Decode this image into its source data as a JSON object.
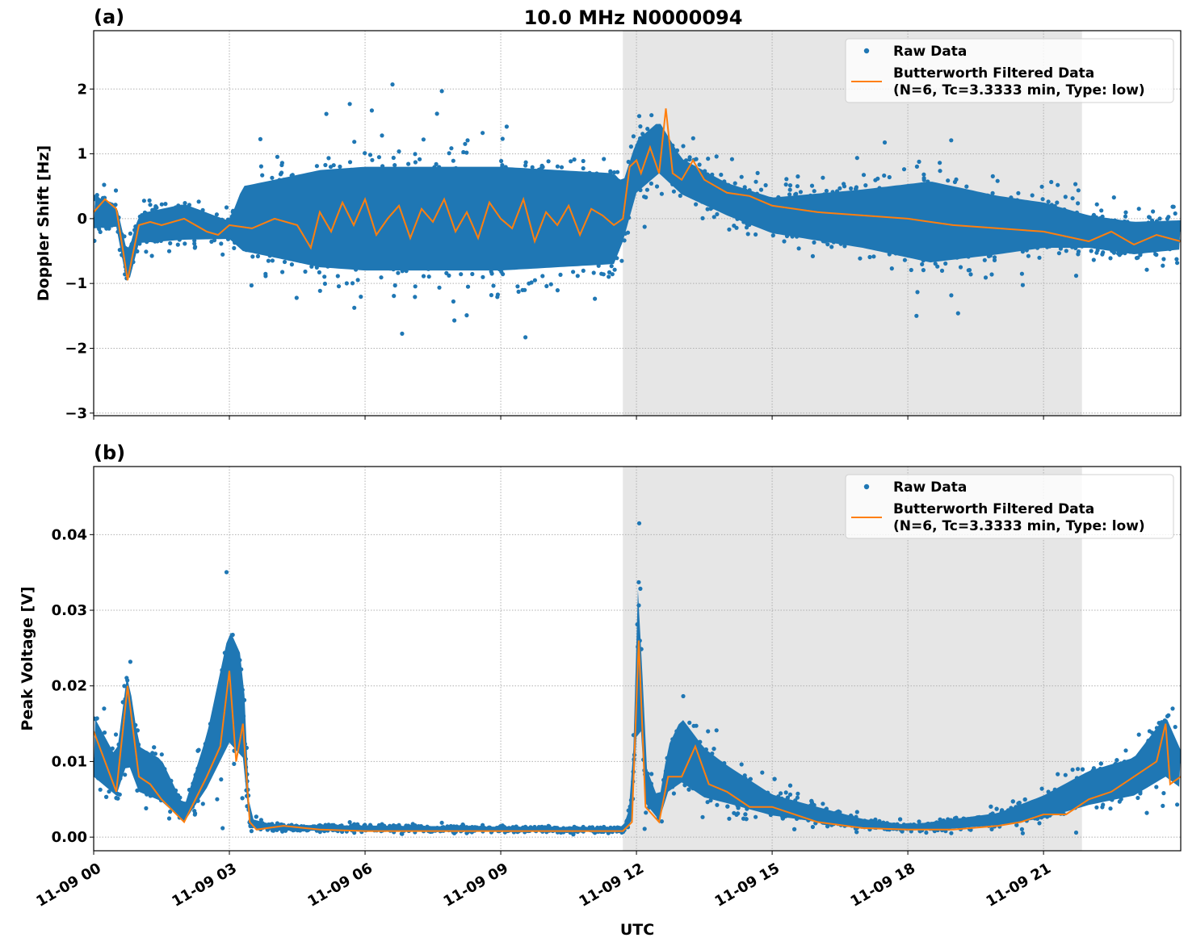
{
  "title": "10.0 MHz N0000094",
  "xlabel": "UTC",
  "chart_data": [
    {
      "type": "scatter+line",
      "panel_label": "(a)",
      "ylabel": "Doppler Shift [Hz]",
      "xlim": [
        "11-09 00:00",
        "11-10 00:02"
      ],
      "ylim": [
        -3.04,
        2.9
      ],
      "grid": true,
      "legend_position": "top-right",
      "x_ticks": [
        "11-09 00",
        "11-09 03",
        "11-09 06",
        "11-09 09",
        "11-09 12",
        "11-09 15",
        "11-09 18",
        "11-09 21"
      ],
      "y_ticks": [
        -3,
        -2,
        -1,
        0,
        1,
        2
      ],
      "y_tick_labels": [
        "−3",
        "−2",
        "−1",
        "0",
        "1",
        "2"
      ],
      "shaded_interval": [
        "11-09 11:42",
        "11-09 21:51"
      ],
      "series": [
        {
          "name": "Raw Data",
          "style": "dots",
          "color": "#1f77b4",
          "range": {
            "x": [
              "11-09 00:00",
              "11-09 00:30",
              "11-09 00:45",
              "11-09 01:00",
              "11-09 02:00",
              "11-09 03:00",
              "11-09 03:18",
              "11-09 04:00",
              "11-09 05:00",
              "11-09 06:00",
              "11-09 09:00",
              "11-09 11:30",
              "11-09 11:42",
              "11-09 12:00",
              "11-09 12:30",
              "11-09 13:00",
              "11-09 14:00",
              "11-09 15:00",
              "11-09 17:00",
              "11-09 18:30",
              "11-09 20:00",
              "11-09 21:00",
              "11-09 22:00",
              "11-09 23:00",
              "11-10 00:02"
            ],
            "low": [
              -0.4,
              -0.3,
              -1.3,
              -0.6,
              -0.6,
              -0.45,
              -1.0,
              -1.2,
              -1.5,
              -1.6,
              -1.6,
              -1.4,
              -0.8,
              0.0,
              0.3,
              0.1,
              -0.2,
              -0.5,
              -0.9,
              -1.3,
              -1.0,
              -0.8,
              -0.7,
              -0.8,
              -0.7
            ],
            "high": [
              0.6,
              0.4,
              -0.3,
              0.3,
              0.5,
              0.1,
              1.0,
              1.2,
              1.5,
              1.6,
              1.6,
              1.4,
              1.0,
              1.6,
              1.9,
              1.2,
              0.8,
              0.6,
              0.9,
              1.2,
              0.8,
              0.6,
              0.3,
              0.2,
              0.2
            ]
          }
        },
        {
          "name": "Butterworth Filtered Data\n(N=6, Tc=3.3333 min, Type: low)",
          "style": "line",
          "color": "#ff7f0e",
          "x": [
            "11-09 00:00",
            "11-09 00:15",
            "11-09 00:30",
            "11-09 00:39",
            "11-09 00:45",
            "11-09 00:51",
            "11-09 01:00",
            "11-09 01:15",
            "11-09 01:30",
            "11-09 02:00",
            "11-09 02:30",
            "11-09 02:45",
            "11-09 03:00",
            "11-09 03:30",
            "11-09 04:00",
            "11-09 04:30",
            "11-09 04:48",
            "11-09 05:00",
            "11-09 05:15",
            "11-09 05:30",
            "11-09 05:45",
            "11-09 06:00",
            "11-09 06:15",
            "11-09 06:30",
            "11-09 06:45",
            "11-09 07:00",
            "11-09 07:15",
            "11-09 07:30",
            "11-09 07:45",
            "11-09 08:00",
            "11-09 08:15",
            "11-09 08:30",
            "11-09 08:45",
            "11-09 09:00",
            "11-09 09:15",
            "11-09 09:30",
            "11-09 09:45",
            "11-09 10:00",
            "11-09 10:15",
            "11-09 10:30",
            "11-09 10:45",
            "11-09 11:00",
            "11-09 11:15",
            "11-09 11:30",
            "11-09 11:42",
            "11-09 11:51",
            "11-09 12:00",
            "11-09 12:06",
            "11-09 12:18",
            "11-09 12:30",
            "11-09 12:39",
            "11-09 12:48",
            "11-09 13:00",
            "11-09 13:15",
            "11-09 13:30",
            "11-09 14:00",
            "11-09 14:30",
            "11-09 15:00",
            "11-09 16:00",
            "11-09 17:00",
            "11-09 18:00",
            "11-09 19:00",
            "11-09 20:00",
            "11-09 21:00",
            "11-09 22:00",
            "11-09 22:30",
            "11-09 23:00",
            "11-09 23:30",
            "11-10 00:02"
          ],
          "y": [
            0.1,
            0.3,
            0.15,
            -0.5,
            -0.95,
            -0.6,
            -0.1,
            -0.05,
            -0.1,
            0.0,
            -0.2,
            -0.25,
            -0.1,
            -0.15,
            0.0,
            -0.1,
            -0.45,
            0.1,
            -0.2,
            0.25,
            -0.1,
            0.3,
            -0.25,
            0.0,
            0.2,
            -0.3,
            0.15,
            -0.05,
            0.3,
            -0.2,
            0.1,
            -0.3,
            0.25,
            0.0,
            -0.15,
            0.3,
            -0.35,
            0.1,
            -0.1,
            0.2,
            -0.25,
            0.15,
            0.05,
            -0.1,
            0.0,
            0.8,
            0.9,
            0.7,
            1.1,
            0.7,
            1.7,
            0.7,
            0.6,
            0.9,
            0.6,
            0.4,
            0.35,
            0.2,
            0.1,
            0.05,
            0.0,
            -0.1,
            -0.15,
            -0.2,
            -0.35,
            -0.2,
            -0.4,
            -0.25,
            -0.35
          ]
        }
      ]
    },
    {
      "type": "scatter+line",
      "panel_label": "(b)",
      "ylabel": "Peak Voltage [V]",
      "xlim": [
        "11-09 00:00",
        "11-10 00:02"
      ],
      "ylim": [
        -0.0018,
        0.049
      ],
      "grid": true,
      "legend_position": "top-right",
      "x_ticks": [
        "11-09 00",
        "11-09 03",
        "11-09 06",
        "11-09 09",
        "11-09 12",
        "11-09 15",
        "11-09 18",
        "11-09 21"
      ],
      "y_ticks": [
        0,
        0.01,
        0.02,
        0.03,
        0.04
      ],
      "y_tick_labels": [
        "0.00",
        "0.01",
        "0.02",
        "0.03",
        "0.04"
      ],
      "shaded_interval": [
        "11-09 11:42",
        "11-09 21:51"
      ],
      "series": [
        {
          "name": "Raw Data",
          "style": "dots",
          "color": "#1f77b4",
          "range": {
            "x": [
              "11-09 00:00",
              "11-09 00:30",
              "11-09 00:45",
              "11-09 01:00",
              "11-09 01:30",
              "11-09 02:00",
              "11-09 02:30",
              "11-09 03:00",
              "11-09 03:18",
              "11-09 03:27",
              "11-09 04:00",
              "11-09 11:42",
              "11-09 11:54",
              "11-09 12:03",
              "11-09 12:12",
              "11-09 12:30",
              "11-09 12:42",
              "11-09 13:00",
              "11-09 13:30",
              "11-09 14:00",
              "11-09 15:00",
              "11-09 16:00",
              "11-09 17:00",
              "11-09 18:00",
              "11-09 19:00",
              "11-09 20:00",
              "11-09 21:00",
              "11-09 22:00",
              "11-09 23:00",
              "11-09 23:42",
              "11-10 00:02"
            ],
            "low": [
              0.004,
              0.003,
              0.004,
              0.003,
              0.002,
              0.001,
              0.003,
              0.005,
              0.004,
              0.0008,
              0.0005,
              0.0005,
              0.001,
              0.01,
              0.002,
              0.001,
              0.003,
              0.003,
              0.002,
              0.002,
              0.0015,
              0.001,
              0.0006,
              0.0005,
              0.0005,
              0.0008,
              0.001,
              0.002,
              0.003,
              0.004,
              0.004
            ],
            "high": [
              0.02,
              0.013,
              0.028,
              0.015,
              0.013,
              0.005,
              0.017,
              0.035,
              0.03,
              0.003,
              0.002,
              0.0015,
              0.006,
              0.045,
              0.012,
              0.006,
              0.015,
              0.02,
              0.015,
              0.012,
              0.007,
              0.005,
              0.003,
              0.002,
              0.003,
              0.004,
              0.007,
              0.011,
              0.013,
              0.02,
              0.014
            ]
          }
        },
        {
          "name": "Butterworth Filtered Data\n(N=6, Tc=3.3333 min, Type: low)",
          "style": "line",
          "color": "#ff7f0e",
          "x": [
            "11-09 00:00",
            "11-09 00:15",
            "11-09 00:30",
            "11-09 00:45",
            "11-09 01:00",
            "11-09 01:15",
            "11-09 01:30",
            "11-09 02:00",
            "11-09 02:30",
            "11-09 02:48",
            "11-09 03:00",
            "11-09 03:09",
            "11-09 03:18",
            "11-09 03:27",
            "11-09 03:36",
            "11-09 04:12",
            "11-09 05:00",
            "11-09 06:00",
            "11-09 09:00",
            "11-09 11:42",
            "11-09 11:54",
            "11-09 12:03",
            "11-09 12:12",
            "11-09 12:30",
            "11-09 12:42",
            "11-09 13:00",
            "11-09 13:18",
            "11-09 13:36",
            "11-09 14:00",
            "11-09 14:30",
            "11-09 15:00",
            "11-09 16:00",
            "11-09 17:00",
            "11-09 18:00",
            "11-09 19:00",
            "11-09 20:00",
            "11-09 20:30",
            "11-09 21:00",
            "11-09 21:30",
            "11-09 22:00",
            "11-09 22:30",
            "11-09 23:00",
            "11-09 23:30",
            "11-09 23:42",
            "11-09 23:48",
            "11-10 00:02"
          ],
          "y": [
            0.014,
            0.01,
            0.006,
            0.02,
            0.008,
            0.007,
            0.005,
            0.002,
            0.008,
            0.012,
            0.022,
            0.01,
            0.015,
            0.002,
            0.001,
            0.0015,
            0.001,
            0.0008,
            0.0008,
            0.0008,
            0.002,
            0.026,
            0.004,
            0.002,
            0.008,
            0.008,
            0.012,
            0.007,
            0.006,
            0.004,
            0.004,
            0.002,
            0.0012,
            0.001,
            0.001,
            0.0015,
            0.002,
            0.003,
            0.003,
            0.005,
            0.006,
            0.008,
            0.01,
            0.015,
            0.007,
            0.008
          ]
        }
      ]
    }
  ]
}
